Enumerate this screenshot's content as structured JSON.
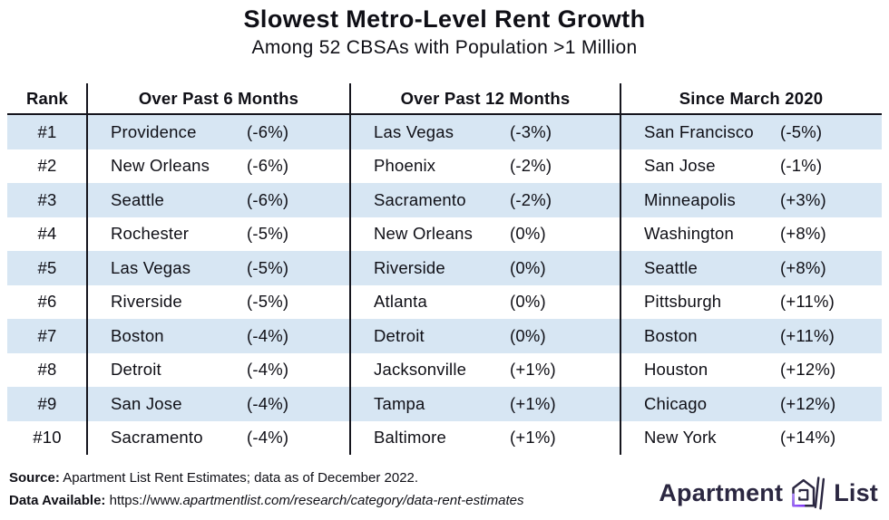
{
  "chart_data": {
    "type": "table",
    "title": "Slowest Metro-Level Rent Growth",
    "subtitle": "Among 52 CBSAs with Population >1 Million",
    "rank_header": "Rank",
    "ranks": [
      "#1",
      "#2",
      "#3",
      "#4",
      "#5",
      "#6",
      "#7",
      "#8",
      "#9",
      "#10"
    ],
    "columns": [
      {
        "header": "Over Past 6 Months",
        "metros": [
          "Providence",
          "New Orleans",
          "Seattle",
          "Rochester",
          "Las Vegas",
          "Riverside",
          "Boston",
          "Detroit",
          "San Jose",
          "Sacramento"
        ],
        "change_labels": [
          "(-6%)",
          "(-6%)",
          "(-6%)",
          "(-5%)",
          "(-5%)",
          "(-5%)",
          "(-4%)",
          "(-4%)",
          "(-4%)",
          "(-4%)"
        ],
        "change_pct": [
          -6,
          -6,
          -6,
          -5,
          -5,
          -5,
          -4,
          -4,
          -4,
          -4
        ]
      },
      {
        "header": "Over Past 12 Months",
        "metros": [
          "Las Vegas",
          "Phoenix",
          "Sacramento",
          "New Orleans",
          "Riverside",
          "Atlanta",
          "Detroit",
          "Jacksonville",
          "Tampa",
          "Baltimore"
        ],
        "change_labels": [
          "(-3%)",
          "(-2%)",
          "(-2%)",
          "(0%)",
          "(0%)",
          "(0%)",
          "(0%)",
          "(+1%)",
          "(+1%)",
          "(+1%)"
        ],
        "change_pct": [
          -3,
          -2,
          -2,
          0,
          0,
          0,
          0,
          1,
          1,
          1
        ]
      },
      {
        "header": "Since March 2020",
        "metros": [
          "San Francisco",
          "San Jose",
          "Minneapolis",
          "Washington",
          "Seattle",
          "Pittsburgh",
          "Boston",
          "Houston",
          "Chicago",
          "New York"
        ],
        "change_labels": [
          "(-5%)",
          "(-1%)",
          "(+3%)",
          "(+8%)",
          "(+8%)",
          "(+11%)",
          "(+11%)",
          "(+12%)",
          "(+12%)",
          "(+14%)"
        ],
        "change_pct": [
          -5,
          -1,
          3,
          8,
          8,
          11,
          11,
          12,
          12,
          14
        ]
      }
    ],
    "layout": {
      "striped_rows": "odd",
      "grid": "off",
      "column_dividers": true
    }
  },
  "footer": {
    "source_label": "Source:",
    "source_text": "Apartment List Rent Estimates; data as of December 2022.",
    "data_label": "Data Available:",
    "url_prefix": "https://www.",
    "url_path": "apartmentlist.com/research/category/data-rent-estimates"
  },
  "logo": {
    "word_1": "Apartment",
    "word_2": "List",
    "icon": "apartment-list-house-icon"
  },
  "colors": {
    "row_stripe": "#d7e6f3",
    "rule_line": "#15151d",
    "text": "#0f0f16",
    "logo_navy": "#2b2741",
    "logo_purple": "#7a2ff0"
  }
}
